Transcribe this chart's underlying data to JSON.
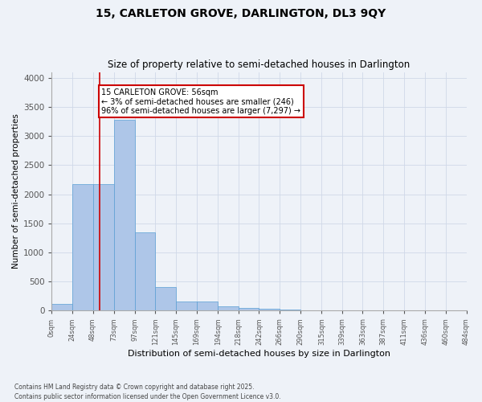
{
  "title1": "15, CARLETON GROVE, DARLINGTON, DL3 9QY",
  "title2": "Size of property relative to semi-detached houses in Darlington",
  "xlabel": "Distribution of semi-detached houses by size in Darlington",
  "ylabel": "Number of semi-detached properties",
  "footnote": "Contains HM Land Registry data © Crown copyright and database right 2025.\nContains public sector information licensed under the Open Government Licence v3.0.",
  "bar_edges": [
    0,
    24,
    48,
    73,
    97,
    121,
    145,
    169,
    194,
    218,
    242,
    266,
    290,
    315,
    339,
    363,
    387,
    411,
    436,
    460,
    484
  ],
  "bar_heights": [
    110,
    2180,
    2180,
    3280,
    1340,
    400,
    155,
    155,
    80,
    45,
    30,
    25,
    5,
    0,
    0,
    0,
    0,
    0,
    0,
    0
  ],
  "bar_color": "#aec6e8",
  "bar_edgecolor": "#5a9fd4",
  "vline_x": 56,
  "vline_color": "#cc0000",
  "annotation_text": "15 CARLETON GROVE: 56sqm\n← 3% of semi-detached houses are smaller (246)\n96% of semi-detached houses are larger (7,297) →",
  "annotation_box_color": "#cc0000",
  "annotation_text_color": "#000000",
  "annotation_bg": "#ffffff",
  "ylim": [
    0,
    4100
  ],
  "yticks": [
    0,
    500,
    1000,
    1500,
    2000,
    2500,
    3000,
    3500,
    4000
  ],
  "tick_labels": [
    "0sqm",
    "24sqm",
    "48sqm",
    "73sqm",
    "97sqm",
    "121sqm",
    "145sqm",
    "169sqm",
    "194sqm",
    "218sqm",
    "242sqm",
    "266sqm",
    "290sqm",
    "315sqm",
    "339sqm",
    "363sqm",
    "387sqm",
    "411sqm",
    "436sqm",
    "460sqm",
    "484sqm"
  ],
  "grid_color": "#d0d8e8",
  "bg_color": "#eef2f8",
  "title1_fontsize": 10,
  "title2_fontsize": 8.5,
  "ylabel_fontsize": 7.5,
  "xlabel_fontsize": 8,
  "footnote_fontsize": 5.5
}
